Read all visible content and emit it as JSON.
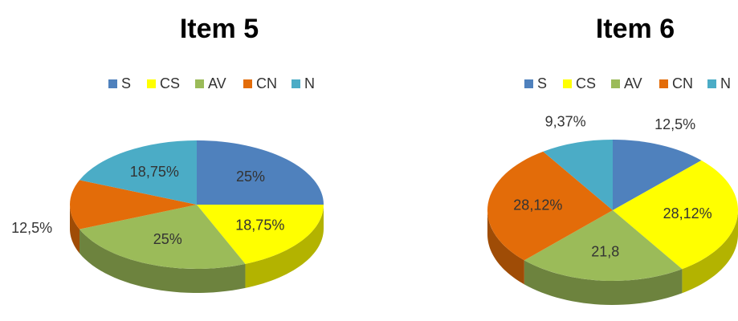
{
  "chart_data": [
    {
      "type": "pie",
      "title": "Item 5",
      "categories": [
        "S",
        "CS",
        "AV",
        "CN",
        "N"
      ],
      "values": [
        25,
        18.75,
        25,
        12.5,
        18.75
      ],
      "value_labels": [
        "25%",
        "18,75%",
        "25%",
        "12,5%",
        "18,75%"
      ],
      "colors": [
        "#4f81bd",
        "#ffff00",
        "#9bbb59",
        "#e36c09",
        "#4bacc6"
      ],
      "legend": "top"
    },
    {
      "type": "pie",
      "title": "Item 6",
      "categories": [
        "S",
        "CS",
        "AV",
        "CN",
        "N"
      ],
      "values": [
        12.5,
        28.12,
        21.8,
        28.12,
        9.37
      ],
      "value_labels": [
        "12,5%",
        "28,12%",
        "21,8",
        "28,12%",
        "9,37%"
      ],
      "colors": [
        "#4f81bd",
        "#ffff00",
        "#9bbb59",
        "#e36c09",
        "#4bacc6"
      ],
      "legend": "top"
    }
  ]
}
